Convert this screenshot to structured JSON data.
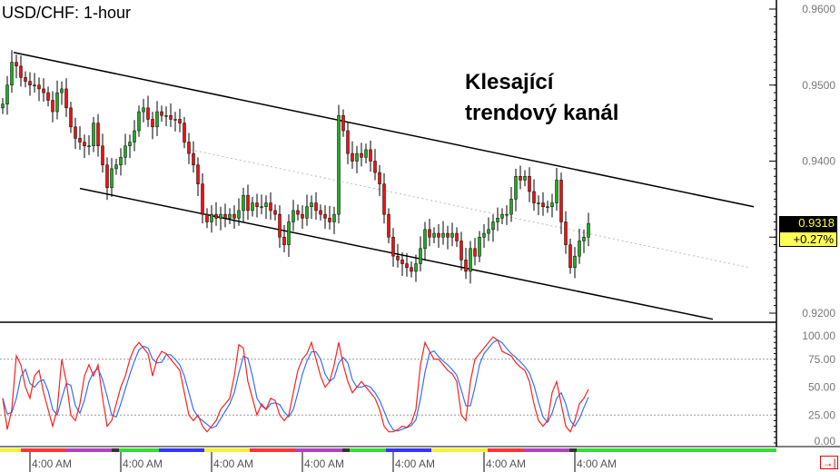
{
  "chart_data": [
    {
      "type": "candlestick",
      "title": "USD/CHF: 1-hour",
      "annotation": [
        "Klesající",
        "trendový kanál"
      ],
      "y_ticks": [
        "0.9600",
        "0.9500",
        "0.9400",
        "0.9200"
      ],
      "ylim": [
        0.918,
        0.9612
      ],
      "last_price": "0.9318",
      "change": "+0.27%",
      "x_tick_labels": [
        "4:00 AM",
        "4:00 AM",
        "4:00 AM",
        "4:00 AM",
        "4:00 AM",
        "4:00 AM",
        "4:00 AM"
      ],
      "x_tick_index": [
        6,
        26,
        46,
        66,
        86,
        106,
        126
      ],
      "closes": [
        0.9475,
        0.95,
        0.953,
        0.9525,
        0.951,
        0.9505,
        0.95,
        0.95,
        0.9495,
        0.949,
        0.948,
        0.9465,
        0.949,
        0.9495,
        0.947,
        0.9445,
        0.943,
        0.9425,
        0.942,
        0.942,
        0.945,
        0.942,
        0.9395,
        0.9365,
        0.939,
        0.9395,
        0.9405,
        0.942,
        0.9425,
        0.944,
        0.9465,
        0.947,
        0.9455,
        0.9445,
        0.9465,
        0.946,
        0.946,
        0.9455,
        0.9455,
        0.945,
        0.9425,
        0.941,
        0.9395,
        0.937,
        0.933,
        0.932,
        0.933,
        0.9325,
        0.933,
        0.9325,
        0.933,
        0.9325,
        0.9335,
        0.9355,
        0.9335,
        0.9345,
        0.934,
        0.934,
        0.9345,
        0.9335,
        0.933,
        0.93,
        0.929,
        0.932,
        0.9335,
        0.933,
        0.9325,
        0.934,
        0.9345,
        0.9335,
        0.933,
        0.9325,
        0.932,
        0.933,
        0.946,
        0.944,
        0.941,
        0.94,
        0.941,
        0.9405,
        0.9415,
        0.94,
        0.9385,
        0.937,
        0.933,
        0.93,
        0.9275,
        0.927,
        0.9265,
        0.926,
        0.9255,
        0.9265,
        0.9285,
        0.931,
        0.93,
        0.9305,
        0.93,
        0.9305,
        0.93,
        0.9305,
        0.9295,
        0.927,
        0.9255,
        0.9285,
        0.9275,
        0.93,
        0.9305,
        0.931,
        0.932,
        0.9325,
        0.933,
        0.933,
        0.935,
        0.938,
        0.9375,
        0.938,
        0.936,
        0.9345,
        0.9345,
        0.934,
        0.934,
        0.9345,
        0.9375,
        0.932,
        0.929,
        0.926,
        0.9275,
        0.9295,
        0.93,
        0.9318
      ],
      "channel": {
        "upper": [
          [
            2.4,
            0.9543
          ],
          [
            165.4,
            0.934
          ]
        ],
        "lower": [
          [
            17,
            0.9364
          ],
          [
            156.4,
            0.9192
          ]
        ],
        "middle": [
          [
            41.4,
            0.9415
          ],
          [
            164.4,
            0.926
          ]
        ]
      }
    },
    {
      "type": "line",
      "indicator": "stochastic",
      "y_ticks": [
        "100.00",
        "75.00",
        "50.00",
        "25.00",
        "0.00"
      ],
      "ylim": [
        0,
        100
      ],
      "levels": [
        25,
        75
      ],
      "k": [
        40,
        12,
        30,
        78,
        70,
        50,
        40,
        60,
        65,
        45,
        30,
        15,
        30,
        75,
        55,
        25,
        20,
        35,
        60,
        70,
        60,
        70,
        40,
        15,
        20,
        35,
        50,
        60,
        75,
        85,
        90,
        85,
        80,
        60,
        75,
        82,
        80,
        75,
        70,
        65,
        45,
        25,
        20,
        25,
        15,
        10,
        15,
        20,
        30,
        35,
        40,
        60,
        88,
        85,
        55,
        40,
        25,
        35,
        30,
        40,
        38,
        25,
        20,
        25,
        45,
        65,
        75,
        80,
        90,
        75,
        60,
        50,
        55,
        70,
        90,
        70,
        55,
        45,
        50,
        55,
        50,
        45,
        40,
        30,
        15,
        10,
        10,
        12,
        15,
        14,
        18,
        30,
        70,
        90,
        82,
        75,
        75,
        70,
        65,
        62,
        55,
        25,
        20,
        55,
        75,
        80,
        85,
        90,
        95,
        92,
        82,
        80,
        78,
        72,
        68,
        65,
        55,
        35,
        20,
        15,
        20,
        45,
        55,
        35,
        15,
        10,
        20,
        35,
        40,
        48
      ],
      "colors": {
        "k": "#ff2020",
        "d": "#3070ff"
      }
    }
  ],
  "session_band": [
    "#ffee33",
    "#ff3333",
    "#b040c0",
    "#333333",
    "#33dd33",
    "#3333ff",
    "#ffee33",
    "#ff3333",
    "#b040c0",
    "#333333",
    "#33dd33",
    "#3333ff",
    "#ffee33",
    "#ff3333",
    "#b040c0",
    "#333333",
    "#33dd33"
  ],
  "colors": {
    "up": "#22aa22",
    "down": "#ee1111"
  }
}
